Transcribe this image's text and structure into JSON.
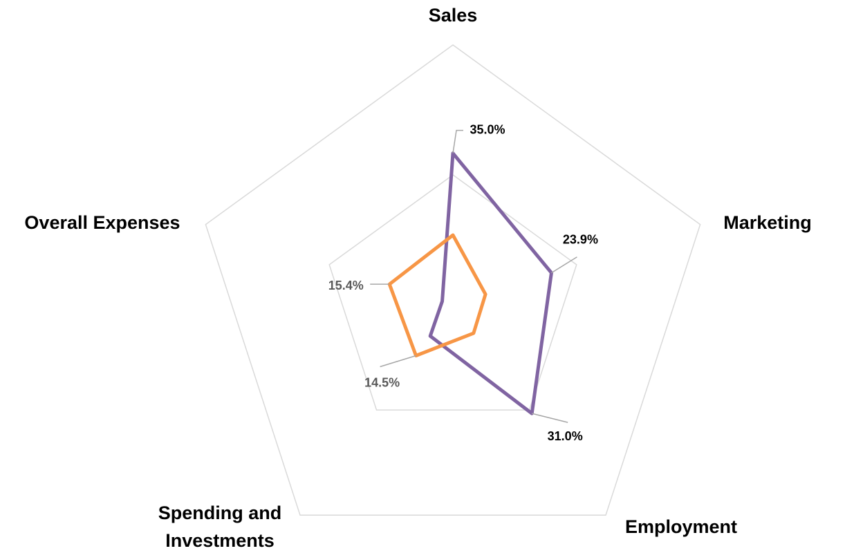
{
  "chart_data": {
    "type": "radar",
    "categories": [
      "Sales",
      "Marketing",
      "Employment",
      "Spending and Investments",
      "Overall Expenses"
    ],
    "rlim": [
      0,
      60
    ],
    "rticks": [
      30,
      60
    ],
    "grid": true,
    "series": [
      {
        "color": "#8064a2",
        "label_color": "#000000",
        "values": [
          35.0,
          23.9,
          31.0,
          8.9,
          2.6
        ],
        "value_labels": [
          "35.0%",
          "23.9%",
          "31.0%",
          null,
          null
        ]
      },
      {
        "color": "#f79646",
        "label_color": "#595959",
        "values": [
          16.1,
          7.9,
          8.1,
          14.5,
          15.4
        ],
        "value_labels": [
          null,
          null,
          null,
          "14.5%",
          "15.4%"
        ]
      }
    ]
  }
}
